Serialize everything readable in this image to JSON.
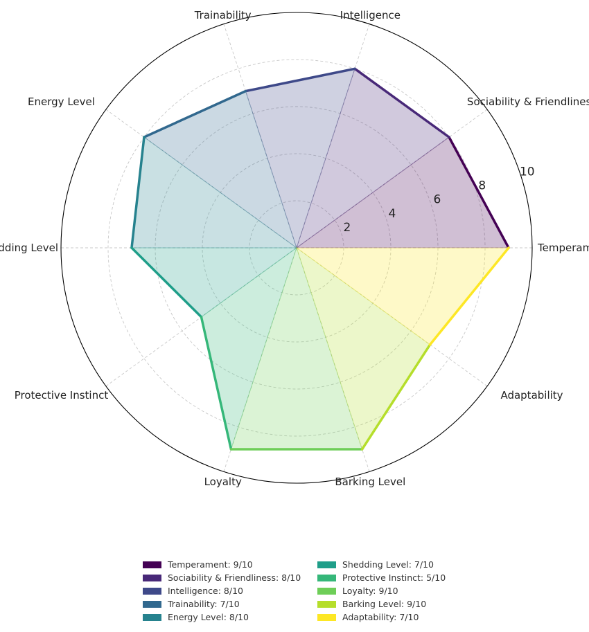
{
  "chart_data": {
    "type": "radar",
    "title": "",
    "categories": [
      "Temperament",
      "Sociability & Friendliness",
      "Intelligence",
      "Trainability",
      "Energy Level",
      "Shedding Level",
      "Protective Instinct",
      "Loyalty",
      "Barking Level",
      "Adaptability"
    ],
    "values": [
      9,
      8,
      8,
      7,
      8,
      7,
      5,
      9,
      9,
      7
    ],
    "colors": [
      "#440154",
      "#482878",
      "#3e4989",
      "#31688e",
      "#26828e",
      "#1f9e89",
      "#35b779",
      "#6ece58",
      "#b5de2b",
      "#fde725"
    ],
    "rlim": [
      0,
      10
    ],
    "rticks": [
      "2",
      "4",
      "6",
      "8",
      "10"
    ],
    "grid": true,
    "legend_position": "bottom-center",
    "legend": [
      "Temperament: 9/10",
      "Sociability & Friendliness: 8/10",
      "Intelligence: 8/10",
      "Trainability: 7/10",
      "Energy Level: 8/10",
      "Shedding Level: 7/10",
      "Protective Instinct: 5/10",
      "Loyalty: 9/10",
      "Barking Level: 9/10",
      "Adaptability: 7/10"
    ]
  }
}
